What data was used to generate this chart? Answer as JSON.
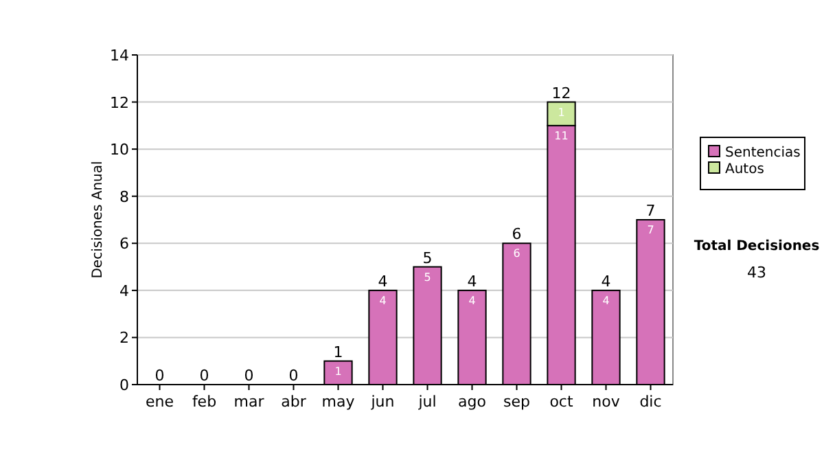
{
  "chart_data": {
    "type": "bar",
    "ylabel": "Decisiones Anual",
    "categories": [
      "ene",
      "feb",
      "mar",
      "abr",
      "may",
      "jun",
      "jul",
      "ago",
      "sep",
      "oct",
      "nov",
      "dic"
    ],
    "series": [
      {
        "name": "Sentencias",
        "color": "#d672b9",
        "values": [
          0,
          0,
          0,
          0,
          1,
          4,
          5,
          4,
          6,
          11,
          4,
          7
        ],
        "value_labels": [
          null,
          null,
          null,
          null,
          "1",
          "4",
          "5",
          "4",
          "6",
          "11",
          "4",
          "7"
        ]
      },
      {
        "name": "Autos",
        "color": "#cce89e",
        "values": [
          0,
          0,
          0,
          0,
          0,
          0,
          0,
          0,
          0,
          1,
          0,
          0
        ],
        "value_labels": [
          null,
          null,
          null,
          null,
          null,
          null,
          null,
          null,
          null,
          "1",
          null,
          null
        ]
      }
    ],
    "stacked": true,
    "totals": [
      "0",
      "0",
      "0",
      "0",
      "1",
      "4",
      "5",
      "4",
      "6",
      "12",
      "4",
      "7"
    ],
    "ylim": [
      0,
      14
    ],
    "yticks": [
      0,
      2,
      4,
      6,
      8,
      10,
      12,
      14
    ],
    "grid": "y",
    "legend": "right",
    "annotations": [
      "Total Decisiones",
      "43"
    ]
  }
}
